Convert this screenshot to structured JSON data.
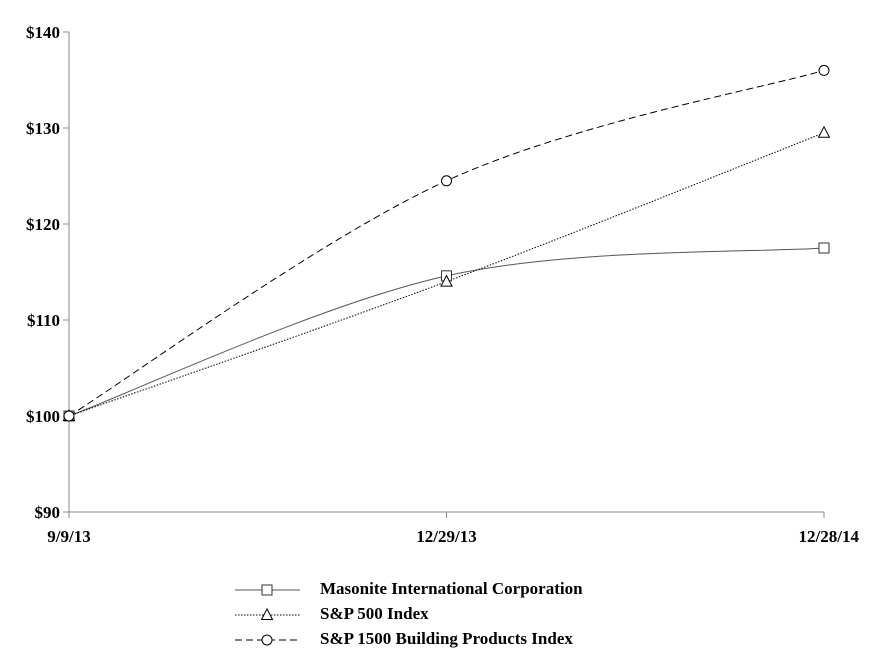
{
  "chart_data": {
    "type": "line",
    "x": [
      "9/9/13",
      "12/29/13",
      "12/28/14"
    ],
    "y_ticks": [
      "$90",
      "$100",
      "$110",
      "$120",
      "$130",
      "$140"
    ],
    "ylim": [
      90,
      140
    ],
    "grid": false,
    "legend_position": "bottom",
    "series": [
      {
        "name": "Masonite International Corporation",
        "values": [
          100,
          114.6,
          117.5
        ],
        "marker": "square",
        "dash": "solid",
        "color": "#555555"
      },
      {
        "name": "S&P 500 Index",
        "values": [
          100,
          114.0,
          129.5
        ],
        "marker": "triangle",
        "dash": "dotted",
        "color": "#000000"
      },
      {
        "name": "S&P 1500 Building Products Index",
        "values": [
          100,
          124.5,
          136.0
        ],
        "marker": "circle",
        "dash": "dashed",
        "color": "#000000"
      }
    ]
  }
}
